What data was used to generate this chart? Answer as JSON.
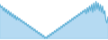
{
  "values": [
    32,
    30,
    31,
    28,
    30,
    27,
    29,
    26,
    28,
    25,
    27,
    24,
    26,
    23,
    25,
    22,
    24,
    22,
    23,
    21,
    22,
    20,
    21,
    19,
    20,
    18,
    19,
    17,
    18,
    16,
    17,
    15,
    16,
    14,
    15,
    13,
    14,
    12,
    13,
    11,
    12,
    10,
    11,
    10,
    12,
    11,
    13,
    12,
    14,
    13,
    15,
    14,
    16,
    15,
    17,
    16,
    18,
    17,
    19,
    18,
    20,
    19,
    21,
    20,
    22,
    21,
    23,
    22,
    24,
    23,
    25,
    24,
    26,
    25,
    27,
    26,
    28,
    27,
    29,
    26,
    30,
    27,
    31,
    28,
    32,
    27,
    33,
    28,
    34,
    29,
    33,
    28,
    32,
    27,
    31,
    26,
    28,
    22,
    20,
    24
  ],
  "line_color": "#5aaed4",
  "fill_color": "#a8d4f0",
  "background_color": "#ffffff",
  "linewidth": 0.7,
  "fill_alpha": 0.85
}
